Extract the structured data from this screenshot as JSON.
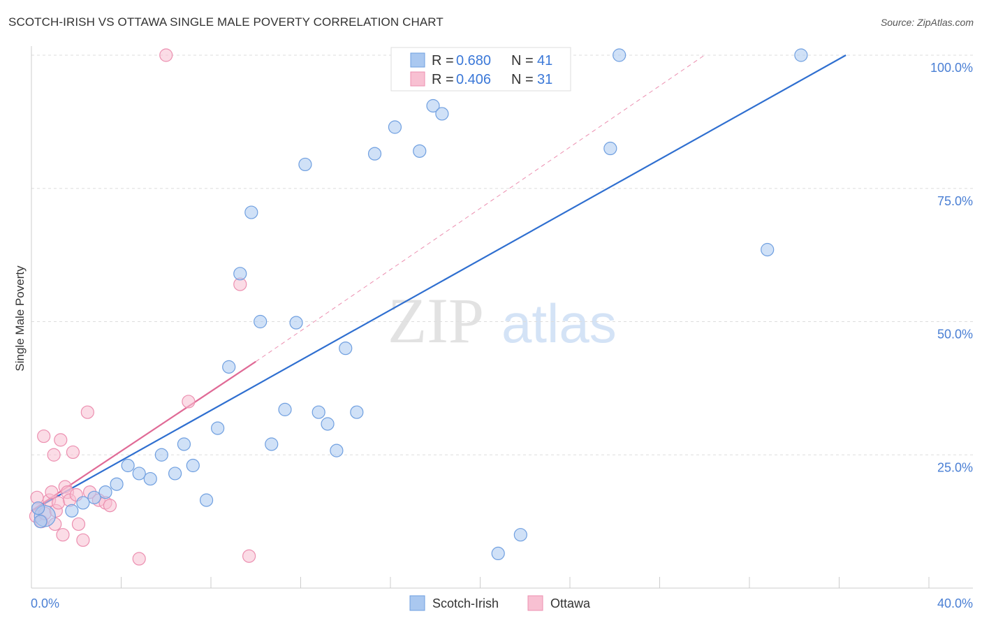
{
  "title": "SCOTCH-IRISH VS OTTAWA SINGLE MALE POVERTY CORRELATION CHART",
  "source": "Source: ZipAtlas.com",
  "watermark": {
    "zip": "ZIP",
    "atlas": "atlas"
  },
  "colors": {
    "scotch_fill": "#aac8f0",
    "scotch_stroke": "#6f9fe0",
    "scotch_line": "#2f6fd0",
    "ottawa_fill": "#f8c0d2",
    "ottawa_stroke": "#ec8fb0",
    "ottawa_line": "#e06a96",
    "grid": "#dddddd",
    "tick_label": "#4a7fd4"
  },
  "legend": {
    "rows": [
      {
        "r_label": "R =",
        "r_value": "0.680",
        "n_label": "N =",
        "n_value": "41"
      },
      {
        "r_label": "R =",
        "r_value": "0.406",
        "n_label": "N =",
        "n_value": "31"
      }
    ]
  },
  "chart_data": {
    "type": "scatter",
    "title": "SCOTCH-IRISH VS OTTAWA SINGLE MALE POVERTY CORRELATION CHART",
    "xlabel": "",
    "ylabel": "Single Male Poverty",
    "xlim": [
      0,
      40
    ],
    "ylim": [
      0,
      100
    ],
    "x_tick_labels": [
      "0.0%",
      "40.0%"
    ],
    "y_ticks": [
      25,
      50,
      75,
      100
    ],
    "y_tick_labels": [
      "25.0%",
      "50.0%",
      "75.0%",
      "100.0%"
    ],
    "legend_position": "top-center",
    "series": [
      {
        "name": "Scotch-Irish",
        "color": "#aac8f0",
        "r": 0.68,
        "n": 41,
        "trend": {
          "x0": 0,
          "y0": 14.5,
          "x1": 36.3,
          "y1": 100
        },
        "points": [
          {
            "x": 0.6,
            "y": 13.5,
            "big": true
          },
          {
            "x": 0.3,
            "y": 15.0
          },
          {
            "x": 0.4,
            "y": 12.5
          },
          {
            "x": 1.8,
            "y": 14.5
          },
          {
            "x": 2.3,
            "y": 16.0
          },
          {
            "x": 2.8,
            "y": 17.0
          },
          {
            "x": 3.3,
            "y": 18.0
          },
          {
            "x": 3.8,
            "y": 19.5
          },
          {
            "x": 4.3,
            "y": 23.0
          },
          {
            "x": 4.8,
            "y": 21.5
          },
          {
            "x": 5.3,
            "y": 20.5
          },
          {
            "x": 5.8,
            "y": 25.0
          },
          {
            "x": 6.4,
            "y": 21.5
          },
          {
            "x": 6.8,
            "y": 27.0
          },
          {
            "x": 7.2,
            "y": 23.0
          },
          {
            "x": 7.8,
            "y": 16.5
          },
          {
            "x": 8.3,
            "y": 30.0
          },
          {
            "x": 8.8,
            "y": 41.5
          },
          {
            "x": 9.3,
            "y": 59.0
          },
          {
            "x": 9.8,
            "y": 70.5
          },
          {
            "x": 10.2,
            "y": 50.0
          },
          {
            "x": 10.7,
            "y": 27.0
          },
          {
            "x": 11.3,
            "y": 33.5
          },
          {
            "x": 11.8,
            "y": 49.8
          },
          {
            "x": 12.2,
            "y": 79.5
          },
          {
            "x": 12.8,
            "y": 33.0
          },
          {
            "x": 13.2,
            "y": 30.8
          },
          {
            "x": 13.6,
            "y": 25.8
          },
          {
            "x": 14.0,
            "y": 45.0
          },
          {
            "x": 14.5,
            "y": 33.0
          },
          {
            "x": 15.3,
            "y": 81.5
          },
          {
            "x": 16.2,
            "y": 86.5
          },
          {
            "x": 17.3,
            "y": 82.0
          },
          {
            "x": 17.9,
            "y": 90.5
          },
          {
            "x": 18.3,
            "y": 89.0
          },
          {
            "x": 20.8,
            "y": 6.5
          },
          {
            "x": 21.8,
            "y": 10.0
          },
          {
            "x": 25.8,
            "y": 82.5
          },
          {
            "x": 26.2,
            "y": 100.0
          },
          {
            "x": 32.8,
            "y": 63.5
          },
          {
            "x": 34.3,
            "y": 100.0
          }
        ]
      },
      {
        "name": "Ottawa",
        "color": "#f8c0d2",
        "r": 0.406,
        "n": 31,
        "trend": {
          "x0": 0,
          "y0": 14.5,
          "x1": 10.0,
          "y1": 42.5
        },
        "trend_dashed": {
          "x0": 10.0,
          "y0": 42.5,
          "x1": 30.0,
          "y1": 100
        },
        "points": [
          {
            "x": 0.2,
            "y": 13.5
          },
          {
            "x": 0.25,
            "y": 17.0
          },
          {
            "x": 0.3,
            "y": 15.0
          },
          {
            "x": 0.45,
            "y": 12.5
          },
          {
            "x": 0.6,
            "y": 14.0
          },
          {
            "x": 0.55,
            "y": 28.5
          },
          {
            "x": 0.8,
            "y": 16.5
          },
          {
            "x": 0.9,
            "y": 18.0
          },
          {
            "x": 1.0,
            "y": 25.0
          },
          {
            "x": 1.1,
            "y": 14.5
          },
          {
            "x": 1.2,
            "y": 16.0
          },
          {
            "x": 1.3,
            "y": 27.8
          },
          {
            "x": 1.4,
            "y": 10.0
          },
          {
            "x": 1.5,
            "y": 19.0
          },
          {
            "x": 1.6,
            "y": 18.0
          },
          {
            "x": 1.7,
            "y": 16.5
          },
          {
            "x": 1.85,
            "y": 25.5
          },
          {
            "x": 2.0,
            "y": 17.5
          },
          {
            "x": 2.1,
            "y": 12.0
          },
          {
            "x": 2.3,
            "y": 9.0
          },
          {
            "x": 2.5,
            "y": 33.0
          },
          {
            "x": 2.6,
            "y": 18.0
          },
          {
            "x": 3.0,
            "y": 16.5
          },
          {
            "x": 3.3,
            "y": 16.0
          },
          {
            "x": 3.5,
            "y": 15.5
          },
          {
            "x": 4.8,
            "y": 5.5
          },
          {
            "x": 6.0,
            "y": 100.0
          },
          {
            "x": 7.0,
            "y": 35.0
          },
          {
            "x": 9.3,
            "y": 57.0
          },
          {
            "x": 9.7,
            "y": 6.0
          },
          {
            "x": 1.05,
            "y": 12.0
          }
        ]
      }
    ]
  }
}
